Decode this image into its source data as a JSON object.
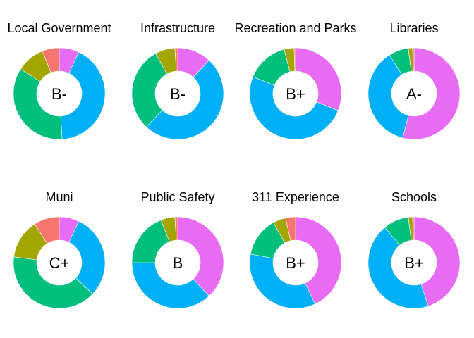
{
  "chart_data": {
    "type": "pie",
    "subtype": "donut",
    "grade_order": [
      "F",
      "D",
      "C",
      "B",
      "A"
    ],
    "colors": {
      "F": "#F8766D",
      "D": "#A3A500",
      "C": "#00BF7D",
      "B": "#00B0F6",
      "A": "#E76BF3"
    },
    "panels": [
      {
        "title": "Local Government",
        "grade": "B-",
        "shares": {
          "A": 0.07,
          "B": 0.42,
          "C": 0.35,
          "D": 0.1,
          "F": 0.06
        }
      },
      {
        "title": "Infrastructure",
        "grade": "B-",
        "shares": {
          "A": 0.12,
          "B": 0.5,
          "C": 0.3,
          "D": 0.07,
          "F": 0.01
        }
      },
      {
        "title": "Recreation and Parks",
        "grade": "B+",
        "shares": {
          "A": 0.31,
          "B": 0.5,
          "C": 0.15,
          "D": 0.035,
          "F": 0.005
        }
      },
      {
        "title": "Libraries",
        "grade": "A-",
        "shares": {
          "A": 0.54,
          "B": 0.37,
          "C": 0.07,
          "D": 0.015,
          "F": 0.005
        }
      },
      {
        "title": "Muni",
        "grade": "C+",
        "shares": {
          "A": 0.07,
          "B": 0.3,
          "C": 0.4,
          "D": 0.14,
          "F": 0.09
        }
      },
      {
        "title": "Public Safety",
        "grade": "B",
        "shares": {
          "A": 0.38,
          "B": 0.37,
          "C": 0.19,
          "D": 0.05,
          "F": 0.01
        }
      },
      {
        "title": "311 Experience",
        "grade": "B+",
        "shares": {
          "A": 0.43,
          "B": 0.35,
          "C": 0.14,
          "D": 0.045,
          "F": 0.035
        }
      },
      {
        "title": "Schools",
        "grade": "B+",
        "shares": {
          "A": 0.45,
          "B": 0.44,
          "C": 0.09,
          "D": 0.015,
          "F": 0.005
        }
      }
    ]
  }
}
